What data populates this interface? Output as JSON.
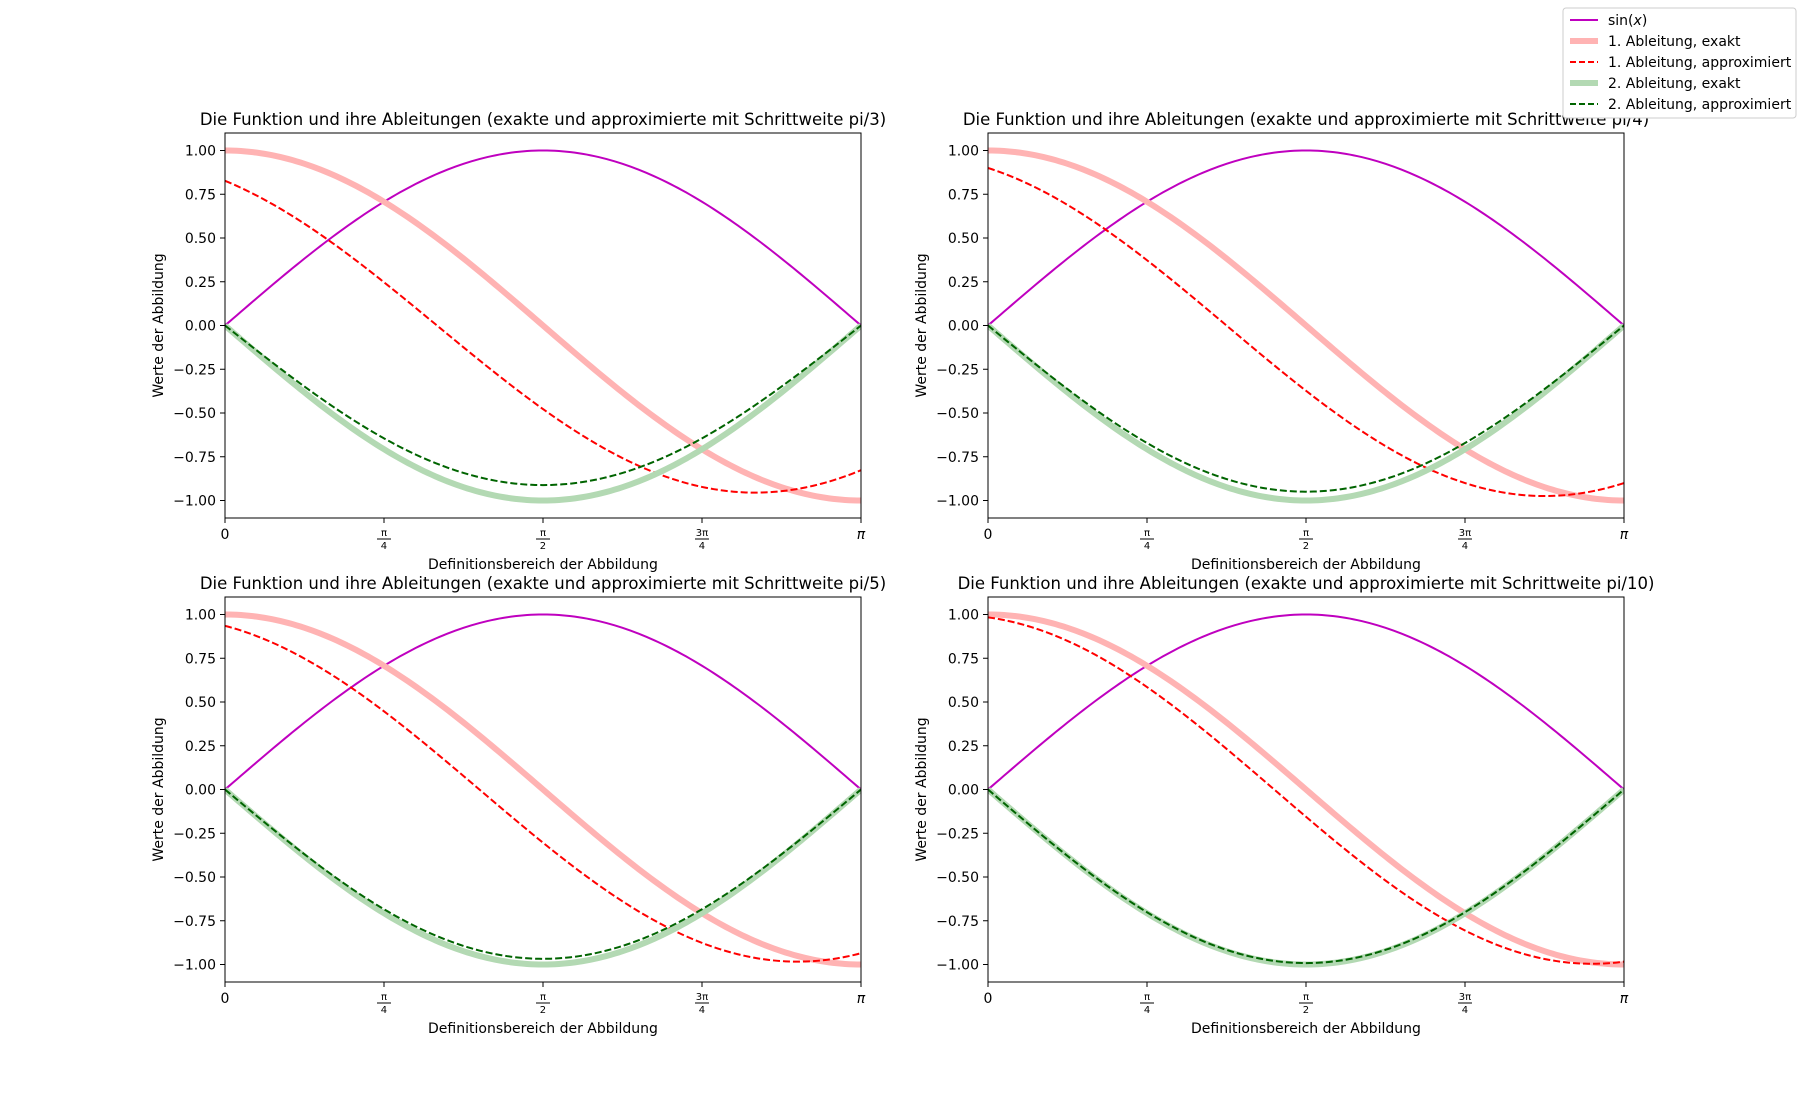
{
  "figure": {
    "legend": [
      {
        "label": "sin(x)",
        "color": "#bf00bf",
        "style": "solid-thin"
      },
      {
        "label": "1. Ableitung, exakt",
        "color": "#ffb3b3",
        "style": "solid-thick"
      },
      {
        "label": "1. Ableitung, approximiert",
        "color": "#ff0000",
        "style": "dashed"
      },
      {
        "label": "2. Ableitung, exakt",
        "color": "#b3d9b3",
        "style": "solid-thick"
      },
      {
        "label": "2. Ableitung, approximiert",
        "color": "#006400",
        "style": "dashed"
      }
    ]
  },
  "chart_data": [
    {
      "type": "line",
      "title": "Die Funktion und ihre Ableitungen (exakte und approximierte mit Schrittweite pi/3)",
      "xlabel": "Definitionsbereich der Abbildung",
      "ylabel": "Werte der Abbildung",
      "step": "pi/3",
      "step_value": 1.0471975512,
      "xlim": [
        0,
        3.14159265
      ],
      "ylim": [
        -1.1,
        1.1
      ],
      "xticks": [
        {
          "value": 0,
          "label": "0"
        },
        {
          "value": 0.785398,
          "label": "π/4"
        },
        {
          "value": 1.570796,
          "label": "π/2"
        },
        {
          "value": 2.356194,
          "label": "3π/4"
        },
        {
          "value": 3.141593,
          "label": "π"
        }
      ],
      "yticks": [
        "1.00",
        "0.75",
        "0.50",
        "0.25",
        "0.00",
        "−0.25",
        "−0.50",
        "−0.75",
        "−1.00"
      ],
      "ytick_values": [
        1.0,
        0.75,
        0.5,
        0.25,
        0.0,
        -0.25,
        -0.5,
        -0.75,
        -1.0
      ],
      "series": [
        {
          "name": "sin(x)",
          "x": [
            0,
            0.3927,
            0.7854,
            1.1781,
            1.5708,
            1.9635,
            2.3562,
            2.7489,
            3.1416
          ],
          "y": [
            0,
            0.383,
            0.707,
            0.924,
            1.0,
            0.924,
            0.707,
            0.383,
            0
          ]
        },
        {
          "name": "1. Ableitung, exakt",
          "x": [
            0,
            0.3927,
            0.7854,
            1.1781,
            1.5708,
            1.9635,
            2.3562,
            2.7489,
            3.1416
          ],
          "y": [
            1.0,
            0.924,
            0.707,
            0.383,
            0,
            -0.383,
            -0.707,
            -0.924,
            -1.0
          ]
        },
        {
          "name": "1. Ableitung, approximiert",
          "x": [
            0,
            0.3927,
            0.7854,
            1.1781,
            1.5708,
            1.9635,
            2.3562,
            2.7489,
            3.1416
          ],
          "y": [
            0.827,
            0.61,
            0.237,
            -0.167,
            -0.472,
            -0.732,
            -0.908,
            -0.952,
            -0.827
          ]
        },
        {
          "name": "2. Ableitung, exakt",
          "x": [
            0,
            0.3927,
            0.7854,
            1.1781,
            1.5708,
            1.9635,
            2.3562,
            2.7489,
            3.1416
          ],
          "y": [
            0,
            -0.383,
            -0.707,
            -0.924,
            -1.0,
            -0.924,
            -0.707,
            -0.383,
            0
          ]
        },
        {
          "name": "2. Ableitung, approximiert",
          "x": [
            0,
            0.3927,
            0.7854,
            1.1781,
            1.5708,
            1.9635,
            2.3562,
            2.7489,
            3.1416
          ],
          "y": [
            0,
            -0.349,
            -0.645,
            -0.843,
            -0.912,
            -0.843,
            -0.645,
            -0.349,
            0
          ]
        }
      ]
    },
    {
      "type": "line",
      "title": "Die Funktion und ihre Ableitungen (exakte und approximierte mit Schrittweite pi/4)",
      "xlabel": "Definitionsbereich der Abbildung",
      "ylabel": "Werte der Abbildung",
      "step": "pi/4",
      "step_value": 0.7853981634,
      "xlim": [
        0,
        3.14159265
      ],
      "ylim": [
        -1.1,
        1.1
      ],
      "xticks": [
        {
          "value": 0,
          "label": "0"
        },
        {
          "value": 0.785398,
          "label": "π/4"
        },
        {
          "value": 1.570796,
          "label": "π/2"
        },
        {
          "value": 2.356194,
          "label": "3π/4"
        },
        {
          "value": 3.141593,
          "label": "π"
        }
      ],
      "yticks": [
        "1.00",
        "0.75",
        "0.50",
        "0.25",
        "0.00",
        "−0.25",
        "−0.50",
        "−0.75",
        "−1.00"
      ],
      "ytick_values": [
        1.0,
        0.75,
        0.5,
        0.25,
        0.0,
        -0.25,
        -0.5,
        -0.75,
        -1.0
      ],
      "series": [
        {
          "name": "sin(x)",
          "x": [
            0,
            0.3927,
            0.7854,
            1.1781,
            1.5708,
            1.9635,
            2.3562,
            2.7489,
            3.1416
          ],
          "y": [
            0,
            0.383,
            0.707,
            0.924,
            1.0,
            0.924,
            0.707,
            0.383,
            0
          ]
        },
        {
          "name": "1. Ableitung, exakt",
          "x": [
            0,
            0.3927,
            0.7854,
            1.1781,
            1.5708,
            1.9635,
            2.3562,
            2.7489,
            3.1416
          ],
          "y": [
            1.0,
            0.924,
            0.707,
            0.383,
            0,
            -0.383,
            -0.707,
            -0.924,
            -1.0
          ]
        },
        {
          "name": "1. Ableitung, approximiert",
          "x": [
            0,
            0.3927,
            0.7854,
            1.1781,
            1.5708,
            1.9635,
            2.3562,
            2.7489,
            3.1416
          ],
          "y": [
            0.9,
            0.75,
            0.45,
            0.073,
            -0.345,
            -0.694,
            -0.925,
            -0.975,
            -0.9
          ]
        },
        {
          "name": "2. Ableitung, exakt",
          "x": [
            0,
            0.3927,
            0.7854,
            1.1781,
            1.5708,
            1.9635,
            2.3562,
            2.7489,
            3.1416
          ],
          "y": [
            0,
            -0.383,
            -0.707,
            -0.924,
            -1.0,
            -0.924,
            -0.707,
            -0.383,
            0
          ]
        },
        {
          "name": "2. Ableitung, approximiert",
          "x": [
            0,
            0.3927,
            0.7854,
            1.1781,
            1.5708,
            1.9635,
            2.3562,
            2.7489,
            3.1416
          ],
          "y": [
            0,
            -0.364,
            -0.673,
            -0.879,
            -0.95,
            -0.879,
            -0.673,
            -0.364,
            0
          ]
        }
      ]
    },
    {
      "type": "line",
      "title": "Die Funktion und ihre Ableitungen (exakte und approximierte mit Schrittweite pi/5)",
      "xlabel": "Definitionsbereich der Abbildung",
      "ylabel": "Werte der Abbildung",
      "step": "pi/5",
      "step_value": 0.6283185307,
      "xlim": [
        0,
        3.14159265
      ],
      "ylim": [
        -1.1,
        1.1
      ],
      "xticks": [
        {
          "value": 0,
          "label": "0"
        },
        {
          "value": 0.785398,
          "label": "π/4"
        },
        {
          "value": 1.570796,
          "label": "π/2"
        },
        {
          "value": 2.356194,
          "label": "3π/4"
        },
        {
          "value": 3.141593,
          "label": "π"
        }
      ],
      "yticks": [
        "1.00",
        "0.75",
        "0.50",
        "0.25",
        "0.00",
        "−0.25",
        "−0.50",
        "−0.75",
        "−1.00"
      ],
      "ytick_values": [
        1.0,
        0.75,
        0.5,
        0.25,
        0.0,
        -0.25,
        -0.5,
        -0.75,
        -1.0
      ],
      "series": [
        {
          "name": "sin(x)",
          "x": [
            0,
            0.3927,
            0.7854,
            1.1781,
            1.5708,
            1.9635,
            2.3562,
            2.7489,
            3.1416
          ],
          "y": [
            0,
            0.383,
            0.707,
            0.924,
            1.0,
            0.924,
            0.707,
            0.383,
            0
          ]
        },
        {
          "name": "1. Ableitung, exakt",
          "x": [
            0,
            0.3927,
            0.7854,
            1.1781,
            1.5708,
            1.9635,
            2.3562,
            2.7489,
            3.1416
          ],
          "y": [
            1.0,
            0.924,
            0.707,
            0.383,
            0,
            -0.383,
            -0.707,
            -0.924,
            -1.0
          ]
        },
        {
          "name": "1. Ableitung, approximiert",
          "x": [
            0,
            0.3927,
            0.7854,
            1.1781,
            1.5708,
            1.9635,
            2.3562,
            2.7489,
            3.1416
          ],
          "y": [
            0.935,
            0.816,
            0.541,
            0.165,
            -0.294,
            -0.66,
            -0.918,
            -0.985,
            -0.935
          ]
        },
        {
          "name": "2. Ableitung, exakt",
          "x": [
            0,
            0.3927,
            0.7854,
            1.1781,
            1.5708,
            1.9635,
            2.3562,
            2.7489,
            3.1416
          ],
          "y": [
            0,
            -0.383,
            -0.707,
            -0.924,
            -1.0,
            -0.924,
            -0.707,
            -0.383,
            0
          ]
        },
        {
          "name": "2. Ableitung, approximiert",
          "x": [
            0,
            0.3927,
            0.7854,
            1.1781,
            1.5708,
            1.9635,
            2.3562,
            2.7489,
            3.1416
          ],
          "y": [
            0,
            -0.371,
            -0.685,
            -0.896,
            -0.968,
            -0.896,
            -0.685,
            -0.371,
            0
          ]
        }
      ]
    },
    {
      "type": "line",
      "title": "Die Funktion und ihre Ableitungen (exakte und approximierte mit Schrittweite pi/10)",
      "xlabel": "Definitionsbereich der Abbildung",
      "ylabel": "Werte der Abbildung",
      "step": "pi/10",
      "step_value": 0.3141592654,
      "xlim": [
        0,
        3.14159265
      ],
      "ylim": [
        -1.1,
        1.1
      ],
      "xticks": [
        {
          "value": 0,
          "label": "0"
        },
        {
          "value": 0.785398,
          "label": "π/4"
        },
        {
          "value": 1.570796,
          "label": "π/2"
        },
        {
          "value": 2.356194,
          "label": "3π/4"
        },
        {
          "value": 3.141593,
          "label": "π"
        }
      ],
      "yticks": [
        "1.00",
        "0.75",
        "0.50",
        "0.25",
        "0.00",
        "−0.25",
        "−0.50",
        "−0.75",
        "−1.00"
      ],
      "ytick_values": [
        1.0,
        0.75,
        0.5,
        0.25,
        0.0,
        -0.25,
        -0.5,
        -0.75,
        -1.0
      ],
      "series": [
        {
          "name": "sin(x)",
          "x": [
            0,
            0.3927,
            0.7854,
            1.1781,
            1.5708,
            1.9635,
            2.3562,
            2.7489,
            3.1416
          ],
          "y": [
            0,
            0.383,
            0.707,
            0.924,
            1.0,
            0.924,
            0.707,
            0.383,
            0
          ]
        },
        {
          "name": "1. Ableitung, exakt",
          "x": [
            0,
            0.3927,
            0.7854,
            1.1781,
            1.5708,
            1.9635,
            2.3562,
            2.7489,
            3.1416
          ],
          "y": [
            1.0,
            0.924,
            0.707,
            0.383,
            0,
            -0.383,
            -0.707,
            -0.924,
            -1.0
          ]
        },
        {
          "name": "1. Ableitung, approximiert",
          "x": [
            0,
            0.3927,
            0.7854,
            1.1781,
            1.5708,
            1.9635,
            2.3562,
            2.7489,
            3.1416
          ],
          "y": [
            0.984,
            0.878,
            0.631,
            0.257,
            -0.153,
            -0.518,
            -0.81,
            -0.966,
            -0.984
          ]
        },
        {
          "name": "2. Ableitung, exakt",
          "x": [
            0,
            0.3927,
            0.7854,
            1.1781,
            1.5708,
            1.9635,
            2.3562,
            2.7489,
            3.1416
          ],
          "y": [
            0,
            -0.383,
            -0.707,
            -0.924,
            -1.0,
            -0.924,
            -0.707,
            -0.383,
            0
          ]
        },
        {
          "name": "2. Ableitung, approximiert",
          "x": [
            0,
            0.3927,
            0.7854,
            1.1781,
            1.5708,
            1.9635,
            2.3562,
            2.7489,
            3.1416
          ],
          "y": [
            0,
            -0.378,
            -0.698,
            -0.915,
            -0.992,
            -0.915,
            -0.698,
            -0.378,
            0
          ]
        }
      ]
    }
  ]
}
